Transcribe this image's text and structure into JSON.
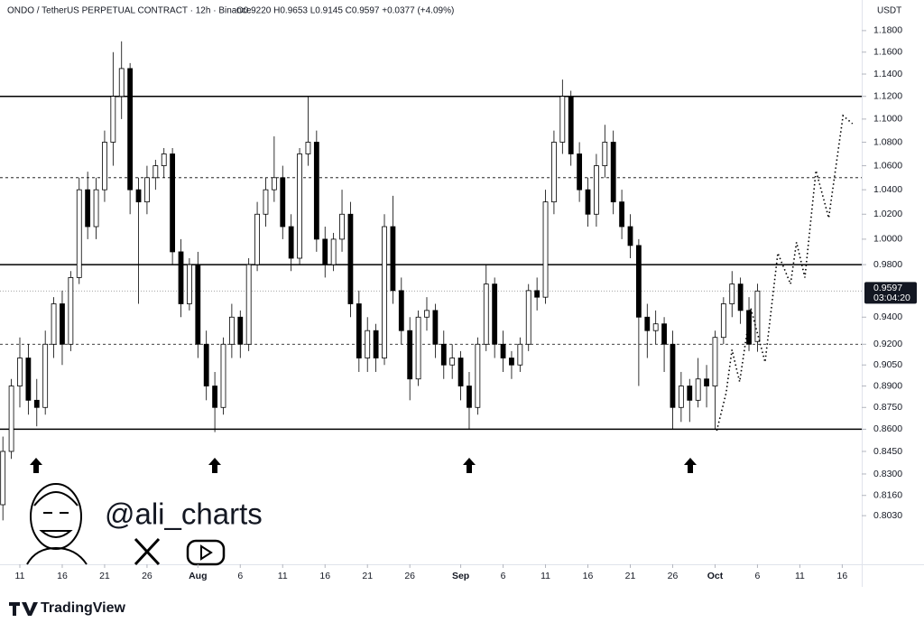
{
  "chart_data": {
    "type": "candlestick",
    "title": "ONDO / TetherUS PERPETUAL CONTRACT · 12h · Binance",
    "subtitle": "O0.9220 H0.9653 L0.9145 C0.9597 +0.0377 (+4.09%)",
    "currency": "USDT",
    "log_scale": true,
    "up_color": "#ffffff",
    "down_color": "#000000",
    "edge_color": "#000000",
    "candles": [
      [
        0.81,
        0.855,
        0.8,
        0.845
      ],
      [
        0.845,
        0.895,
        0.84,
        0.89
      ],
      [
        0.89,
        0.925,
        0.875,
        0.91
      ],
      [
        0.91,
        0.92,
        0.87,
        0.88
      ],
      [
        0.88,
        0.895,
        0.862,
        0.875
      ],
      [
        0.875,
        0.93,
        0.87,
        0.92
      ],
      [
        0.92,
        0.955,
        0.91,
        0.95
      ],
      [
        0.95,
        0.96,
        0.905,
        0.92
      ],
      [
        0.92,
        0.975,
        0.915,
        0.97
      ],
      [
        0.97,
        1.05,
        0.965,
        1.04
      ],
      [
        1.04,
        1.055,
        1.0,
        1.01
      ],
      [
        1.01,
        1.05,
        1.0,
        1.04
      ],
      [
        1.04,
        1.09,
        1.03,
        1.08
      ],
      [
        1.08,
        1.16,
        1.06,
        1.12
      ],
      [
        1.12,
        1.17,
        1.1,
        1.145
      ],
      [
        1.145,
        1.15,
        1.02,
        1.04
      ],
      [
        1.04,
        1.05,
        0.95,
        1.03
      ],
      [
        1.03,
        1.06,
        1.02,
        1.05
      ],
      [
        1.05,
        1.065,
        1.04,
        1.06
      ],
      [
        1.06,
        1.075,
        1.05,
        1.07
      ],
      [
        1.07,
        1.075,
        0.98,
        0.99
      ],
      [
        0.99,
        1.0,
        0.94,
        0.95
      ],
      [
        0.95,
        0.985,
        0.945,
        0.98
      ],
      [
        0.98,
        0.99,
        0.91,
        0.92
      ],
      [
        0.92,
        0.93,
        0.88,
        0.89
      ],
      [
        0.89,
        0.9,
        0.858,
        0.875
      ],
      [
        0.875,
        0.925,
        0.87,
        0.92
      ],
      [
        0.92,
        0.95,
        0.91,
        0.94
      ],
      [
        0.94,
        0.945,
        0.91,
        0.92
      ],
      [
        0.92,
        0.985,
        0.915,
        0.98
      ],
      [
        0.98,
        1.03,
        0.975,
        1.02
      ],
      [
        1.02,
        1.05,
        1.01,
        1.04
      ],
      [
        1.04,
        1.085,
        1.03,
        1.05
      ],
      [
        1.05,
        1.06,
        1.0,
        1.01
      ],
      [
        1.01,
        1.02,
        0.975,
        0.985
      ],
      [
        0.985,
        1.075,
        0.98,
        1.07
      ],
      [
        1.07,
        1.12,
        1.06,
        1.08
      ],
      [
        1.08,
        1.09,
        0.99,
        1.0
      ],
      [
        1.0,
        1.01,
        0.97,
        0.98
      ],
      [
        0.98,
        1.005,
        0.975,
        1.0
      ],
      [
        1.0,
        1.04,
        0.99,
        1.02
      ],
      [
        1.02,
        1.03,
        0.94,
        0.95
      ],
      [
        0.95,
        0.96,
        0.9,
        0.91
      ],
      [
        0.91,
        0.94,
        0.9,
        0.93
      ],
      [
        0.93,
        0.935,
        0.9,
        0.91
      ],
      [
        0.91,
        1.02,
        0.905,
        1.01
      ],
      [
        1.01,
        1.035,
        0.95,
        0.96
      ],
      [
        0.96,
        0.97,
        0.92,
        0.93
      ],
      [
        0.93,
        0.94,
        0.88,
        0.895
      ],
      [
        0.895,
        0.945,
        0.89,
        0.94
      ],
      [
        0.94,
        0.955,
        0.93,
        0.945
      ],
      [
        0.945,
        0.95,
        0.91,
        0.92
      ],
      [
        0.92,
        0.93,
        0.895,
        0.905
      ],
      [
        0.905,
        0.92,
        0.895,
        0.91
      ],
      [
        0.91,
        0.915,
        0.88,
        0.89
      ],
      [
        0.89,
        0.9,
        0.86,
        0.875
      ],
      [
        0.875,
        0.925,
        0.87,
        0.92
      ],
      [
        0.92,
        0.98,
        0.915,
        0.965
      ],
      [
        0.965,
        0.97,
        0.91,
        0.92
      ],
      [
        0.92,
        0.93,
        0.9,
        0.91
      ],
      [
        0.91,
        0.915,
        0.895,
        0.905
      ],
      [
        0.905,
        0.925,
        0.9,
        0.92
      ],
      [
        0.92,
        0.965,
        0.915,
        0.96
      ],
      [
        0.96,
        0.97,
        0.945,
        0.955
      ],
      [
        0.955,
        1.04,
        0.95,
        1.03
      ],
      [
        1.03,
        1.09,
        1.02,
        1.08
      ],
      [
        1.08,
        1.135,
        1.07,
        1.12
      ],
      [
        1.12,
        1.125,
        1.06,
        1.07
      ],
      [
        1.07,
        1.08,
        1.03,
        1.04
      ],
      [
        1.04,
        1.05,
        1.01,
        1.02
      ],
      [
        1.02,
        1.07,
        1.01,
        1.06
      ],
      [
        1.06,
        1.095,
        1.05,
        1.08
      ],
      [
        1.08,
        1.09,
        1.02,
        1.03
      ],
      [
        1.03,
        1.04,
        1.0,
        1.01
      ],
      [
        1.01,
        1.02,
        0.985,
        0.995
      ],
      [
        0.995,
        1.0,
        0.89,
        0.94
      ],
      [
        0.94,
        0.95,
        0.91,
        0.93
      ],
      [
        0.93,
        0.945,
        0.92,
        0.935
      ],
      [
        0.935,
        0.94,
        0.9,
        0.92
      ],
      [
        0.92,
        0.93,
        0.86,
        0.875
      ],
      [
        0.875,
        0.9,
        0.865,
        0.89
      ],
      [
        0.89,
        0.895,
        0.865,
        0.88
      ],
      [
        0.88,
        0.91,
        0.875,
        0.895
      ],
      [
        0.895,
        0.905,
        0.875,
        0.89
      ],
      [
        0.89,
        0.93,
        0.86,
        0.925
      ],
      [
        0.925,
        0.955,
        0.92,
        0.95
      ],
      [
        0.95,
        0.975,
        0.94,
        0.965
      ],
      [
        0.965,
        0.97,
        0.935,
        0.945
      ],
      [
        0.945,
        0.955,
        0.915,
        0.92
      ],
      [
        0.922,
        0.9653,
        0.9145,
        0.9597
      ]
    ],
    "projection": {
      "x": [
        84.2,
        85.3,
        86.0,
        86.9,
        88.2,
        89.9,
        91.4,
        92.9,
        93.6,
        94.6,
        95.9,
        97.4,
        99.1,
        100.2
      ],
      "values": [
        0.859,
        0.885,
        0.916,
        0.893,
        0.947,
        0.907,
        0.989,
        0.965,
        0.9975,
        0.97,
        1.056,
        1.017,
        1.103,
        1.096
      ]
    },
    "levels": [
      {
        "value": 1.12,
        "style": "solid"
      },
      {
        "value": 1.05,
        "style": "dashed"
      },
      {
        "value": 0.98,
        "style": "solid"
      },
      {
        "value": 0.92,
        "style": "dashed"
      },
      {
        "value": 0.86,
        "style": "solid"
      }
    ],
    "last_price": {
      "value": 0.9597,
      "label": "0.9597"
    },
    "countdown": "03:04:20",
    "xlim": [
      -0.34,
      101.3
    ],
    "xticks": [
      {
        "value": 2,
        "label": "11"
      },
      {
        "value": 7,
        "label": "16"
      },
      {
        "value": 12,
        "label": "21"
      },
      {
        "value": 17,
        "label": "26"
      },
      {
        "value": 23,
        "label": "Aug"
      },
      {
        "value": 28,
        "label": "6"
      },
      {
        "value": 33,
        "label": "11"
      },
      {
        "value": 38,
        "label": "16"
      },
      {
        "value": 43,
        "label": "21"
      },
      {
        "value": 48,
        "label": "26"
      },
      {
        "value": 54,
        "label": "Sep"
      },
      {
        "value": 59,
        "label": "6"
      },
      {
        "value": 64,
        "label": "11"
      },
      {
        "value": 69,
        "label": "16"
      },
      {
        "value": 74,
        "label": "21"
      },
      {
        "value": 79,
        "label": "26"
      },
      {
        "value": 84,
        "label": "Oct"
      },
      {
        "value": 89,
        "label": "6"
      },
      {
        "value": 94,
        "label": "11"
      },
      {
        "value": 99,
        "label": "16"
      }
    ],
    "ylim": [
      0.7726,
      1.209
    ],
    "yticks": [
      {
        "value": 1.18,
        "label": "1.1800"
      },
      {
        "value": 1.16,
        "label": "1.1600"
      },
      {
        "value": 1.14,
        "label": "1.1400"
      },
      {
        "value": 1.12,
        "label": "1.1200"
      },
      {
        "value": 1.1,
        "label": "1.1000"
      },
      {
        "value": 1.08,
        "label": "1.0800"
      },
      {
        "value": 1.06,
        "label": "1.0600"
      },
      {
        "value": 1.04,
        "label": "1.0400"
      },
      {
        "value": 1.02,
        "label": "1.0200"
      },
      {
        "value": 1.0,
        "label": "1.0000"
      },
      {
        "value": 0.98,
        "label": "0.9800"
      },
      {
        "value": 0.94,
        "label": "0.9400"
      },
      {
        "value": 0.92,
        "label": "0.9200"
      },
      {
        "value": 0.905,
        "label": "0.9050"
      },
      {
        "value": 0.89,
        "label": "0.8900"
      },
      {
        "value": 0.875,
        "label": "0.8750"
      },
      {
        "value": 0.86,
        "label": "0.8600"
      },
      {
        "value": 0.845,
        "label": "0.8450"
      },
      {
        "value": 0.83,
        "label": "0.8300"
      },
      {
        "value": 0.816,
        "label": "0.8160"
      },
      {
        "value": 0.803,
        "label": "0.8030"
      }
    ],
    "grid": false
  },
  "watermark": "@ali_charts",
  "logo": "TradingView"
}
